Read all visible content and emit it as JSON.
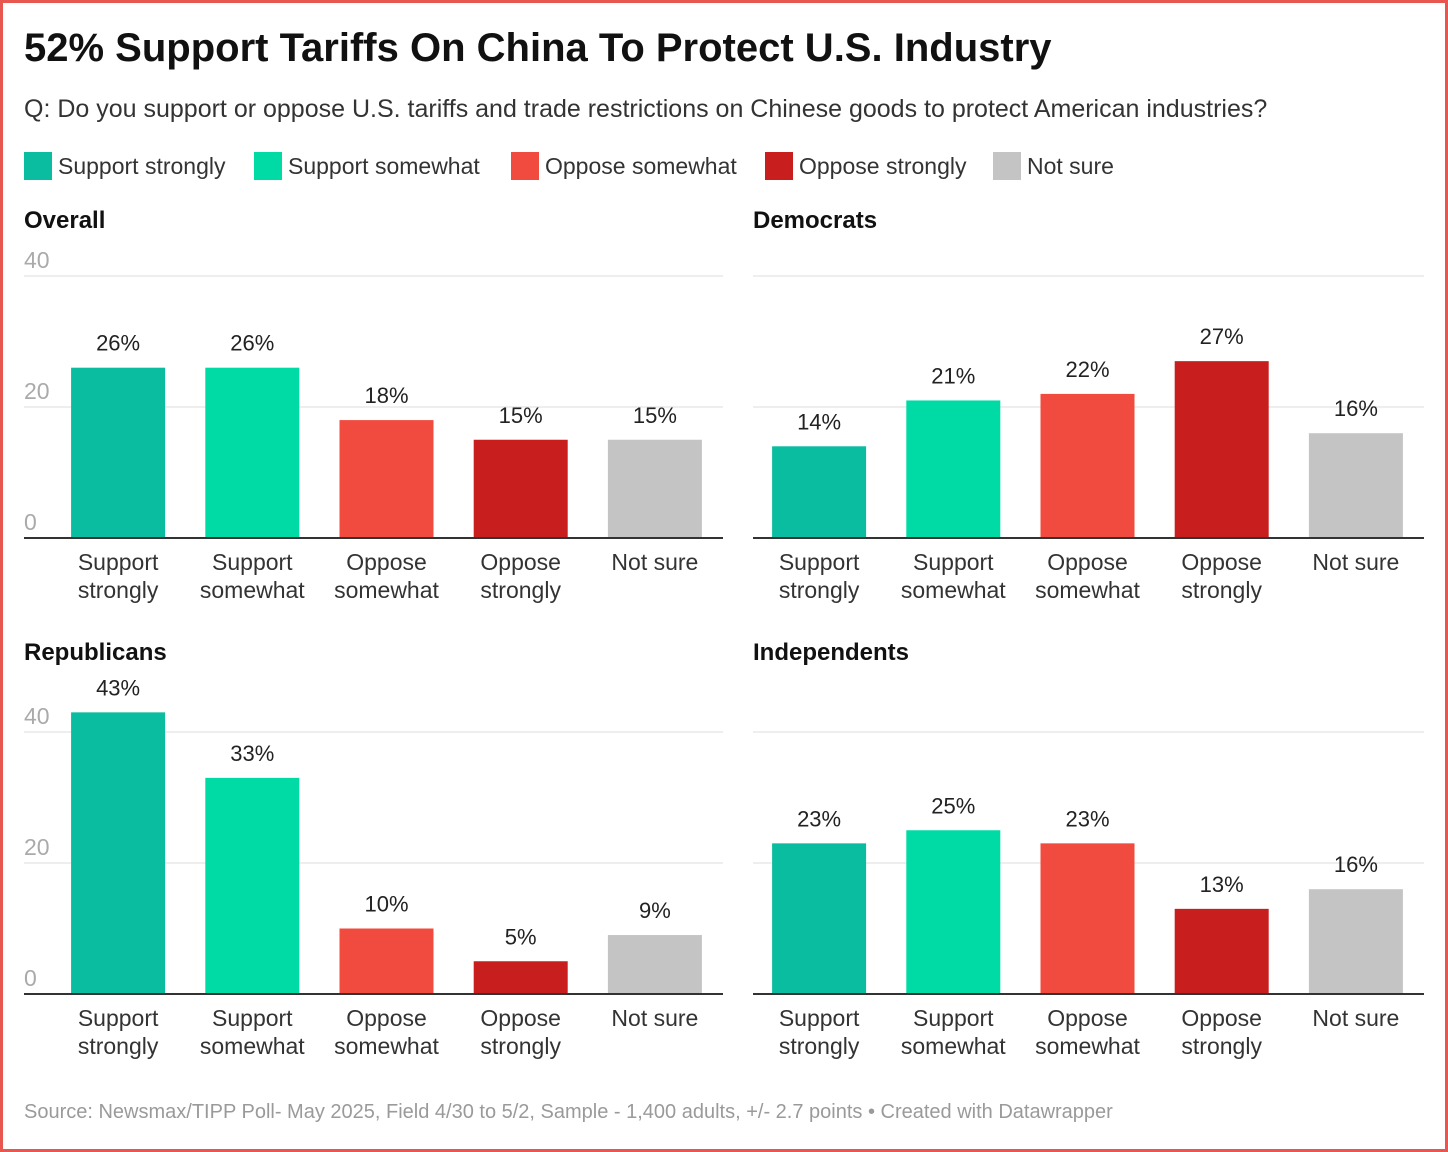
{
  "title": "52% Support Tariffs On China To Protect U.S. Industry",
  "subtitle": "Q: Do you support or oppose U.S. tariffs and trade restrictions on Chinese goods to protect American industries?",
  "legend": [
    {
      "label": "Support strongly",
      "color": "#0abca0"
    },
    {
      "label": "Support somewhat",
      "color": "#00dba6"
    },
    {
      "label": "Oppose somewhat",
      "color": "#f04b3e"
    },
    {
      "label": "Oppose strongly",
      "color": "#c81e1e"
    },
    {
      "label": "Not sure",
      "color": "#c4c4c4"
    }
  ],
  "footer": "Source: Newsmax/TIPP Poll- May 2025, Field 4/30 to 5/2, Sample - 1,400 adults, +/- 2.7 points • Created with Datawrapper",
  "chart_data": [
    {
      "type": "bar",
      "title": "Overall",
      "categories": [
        "Support strongly",
        "Support somewhat",
        "Oppose somewhat",
        "Oppose strongly",
        "Not sure"
      ],
      "values": [
        26,
        26,
        18,
        15,
        15
      ],
      "labels": [
        "26%",
        "26%",
        "18%",
        "15%",
        "15%"
      ],
      "colors": [
        "#0abca0",
        "#00dba6",
        "#f04b3e",
        "#c81e1e",
        "#c4c4c4"
      ],
      "yticks": [
        0,
        20,
        40
      ],
      "show_tick_labels": true,
      "ylim": [
        0,
        40
      ],
      "grid": true
    },
    {
      "type": "bar",
      "title": "Democrats",
      "categories": [
        "Support strongly",
        "Support somewhat",
        "Oppose somewhat",
        "Oppose strongly",
        "Not sure"
      ],
      "values": [
        14,
        21,
        22,
        27,
        16
      ],
      "labels": [
        "14%",
        "21%",
        "22%",
        "27%",
        "16%"
      ],
      "colors": [
        "#0abca0",
        "#00dba6",
        "#f04b3e",
        "#c81e1e",
        "#c4c4c4"
      ],
      "yticks": [
        0,
        20,
        40
      ],
      "show_tick_labels": false,
      "ylim": [
        0,
        40
      ],
      "grid": true
    },
    {
      "type": "bar",
      "title": "Republicans",
      "categories": [
        "Support strongly",
        "Support somewhat",
        "Oppose somewhat",
        "Oppose strongly",
        "Not sure"
      ],
      "values": [
        43,
        33,
        10,
        5,
        9
      ],
      "labels": [
        "43%",
        "33%",
        "10%",
        "5%",
        "9%"
      ],
      "colors": [
        "#0abca0",
        "#00dba6",
        "#f04b3e",
        "#c81e1e",
        "#c4c4c4"
      ],
      "yticks": [
        0,
        20,
        40
      ],
      "show_tick_labels": true,
      "ylim": [
        0,
        40
      ],
      "grid": true
    },
    {
      "type": "bar",
      "title": "Independents",
      "categories": [
        "Support strongly",
        "Support somewhat",
        "Oppose somewhat",
        "Oppose strongly",
        "Not sure"
      ],
      "values": [
        23,
        25,
        23,
        13,
        16
      ],
      "labels": [
        "23%",
        "25%",
        "23%",
        "13%",
        "16%"
      ],
      "colors": [
        "#0abca0",
        "#00dba6",
        "#f04b3e",
        "#c81e1e",
        "#c4c4c4"
      ],
      "yticks": [
        0,
        20,
        40
      ],
      "show_tick_labels": false,
      "ylim": [
        0,
        40
      ],
      "grid": true
    }
  ]
}
